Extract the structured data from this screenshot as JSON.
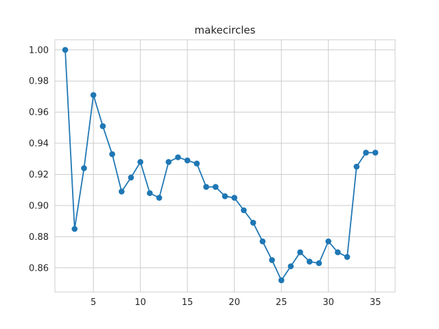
{
  "chart_data": {
    "type": "line",
    "title": "makecircles",
    "xlabel": "",
    "ylabel": "",
    "xlim": [
      0.9,
      37.1
    ],
    "ylim": [
      0.8445,
      1.0065
    ],
    "xticks": [
      5,
      10,
      15,
      20,
      25,
      30,
      35
    ],
    "yticks": [
      0.86,
      0.88,
      0.9,
      0.92,
      0.94,
      0.96,
      0.98,
      1.0
    ],
    "xtick_labels": [
      "5",
      "10",
      "15",
      "20",
      "25",
      "30",
      "35"
    ],
    "ytick_labels": [
      "0.86",
      "0.88",
      "0.90",
      "0.92",
      "0.94",
      "0.96",
      "0.98",
      "1.00"
    ],
    "grid": true,
    "series": [
      {
        "color": "#1f77b4",
        "marker": "circle",
        "x": [
          2,
          3,
          4,
          5,
          6,
          7,
          8,
          9,
          10,
          11,
          12,
          13,
          14,
          15,
          16,
          17,
          18,
          19,
          20,
          21,
          22,
          23,
          24,
          25,
          26,
          27,
          28,
          29,
          30,
          31,
          32,
          33,
          34,
          35
        ],
        "y": [
          1.0,
          0.885,
          0.924,
          0.971,
          0.951,
          0.933,
          0.909,
          0.918,
          0.928,
          0.908,
          0.905,
          0.928,
          0.931,
          0.929,
          0.927,
          0.912,
          0.912,
          0.906,
          0.905,
          0.897,
          0.889,
          0.877,
          0.865,
          0.852,
          0.861,
          0.87,
          0.864,
          0.863,
          0.877,
          0.87,
          0.867,
          0.925,
          0.934,
          0.934
        ]
      }
    ]
  }
}
